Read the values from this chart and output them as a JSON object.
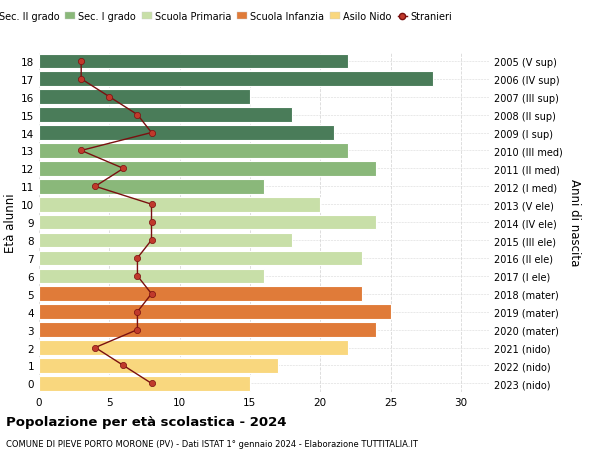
{
  "ages": [
    0,
    1,
    2,
    3,
    4,
    5,
    6,
    7,
    8,
    9,
    10,
    11,
    12,
    13,
    14,
    15,
    16,
    17,
    18
  ],
  "right_labels": [
    "2023 (nido)",
    "2022 (nido)",
    "2021 (nido)",
    "2020 (mater)",
    "2019 (mater)",
    "2018 (mater)",
    "2017 (I ele)",
    "2016 (II ele)",
    "2015 (III ele)",
    "2014 (IV ele)",
    "2013 (V ele)",
    "2012 (I med)",
    "2011 (II med)",
    "2010 (III med)",
    "2009 (I sup)",
    "2008 (II sup)",
    "2007 (III sup)",
    "2006 (IV sup)",
    "2005 (V sup)"
  ],
  "bar_values": [
    15,
    17,
    22,
    24,
    25,
    23,
    16,
    23,
    18,
    24,
    20,
    16,
    24,
    22,
    21,
    18,
    15,
    28,
    22
  ],
  "bar_colors": [
    "#f9d77e",
    "#f9d77e",
    "#f9d77e",
    "#e07b39",
    "#e07b39",
    "#e07b39",
    "#c8dfa8",
    "#c8dfa8",
    "#c8dfa8",
    "#c8dfa8",
    "#c8dfa8",
    "#8ab87a",
    "#8ab87a",
    "#8ab87a",
    "#4a7c59",
    "#4a7c59",
    "#4a7c59",
    "#4a7c59",
    "#4a7c59"
  ],
  "stranieri": [
    8,
    6,
    4,
    7,
    7,
    8,
    7,
    7,
    8,
    8,
    8,
    4,
    6,
    3,
    8,
    7,
    5,
    3,
    3
  ],
  "legend_labels": [
    "Sec. II grado",
    "Sec. I grado",
    "Scuola Primaria",
    "Scuola Infanzia",
    "Asilo Nido",
    "Stranieri"
  ],
  "legend_colors": [
    "#4a7c59",
    "#8ab87a",
    "#c8dfa8",
    "#e07b39",
    "#f9d77e",
    "#c0392b"
  ],
  "ylabel_left": "Età alunni",
  "ylabel_right": "Anni di nascita",
  "title": "Popolazione per età scolastica - 2024",
  "subtitle": "COMUNE DI PIEVE PORTO MORONE (PV) - Dati ISTAT 1° gennaio 2024 - Elaborazione TUTTITALIA.IT",
  "xlim": [
    0,
    32
  ],
  "ylim": [
    -0.5,
    18.5
  ],
  "bg_color": "#ffffff",
  "grid_color": "#d8d8d8"
}
